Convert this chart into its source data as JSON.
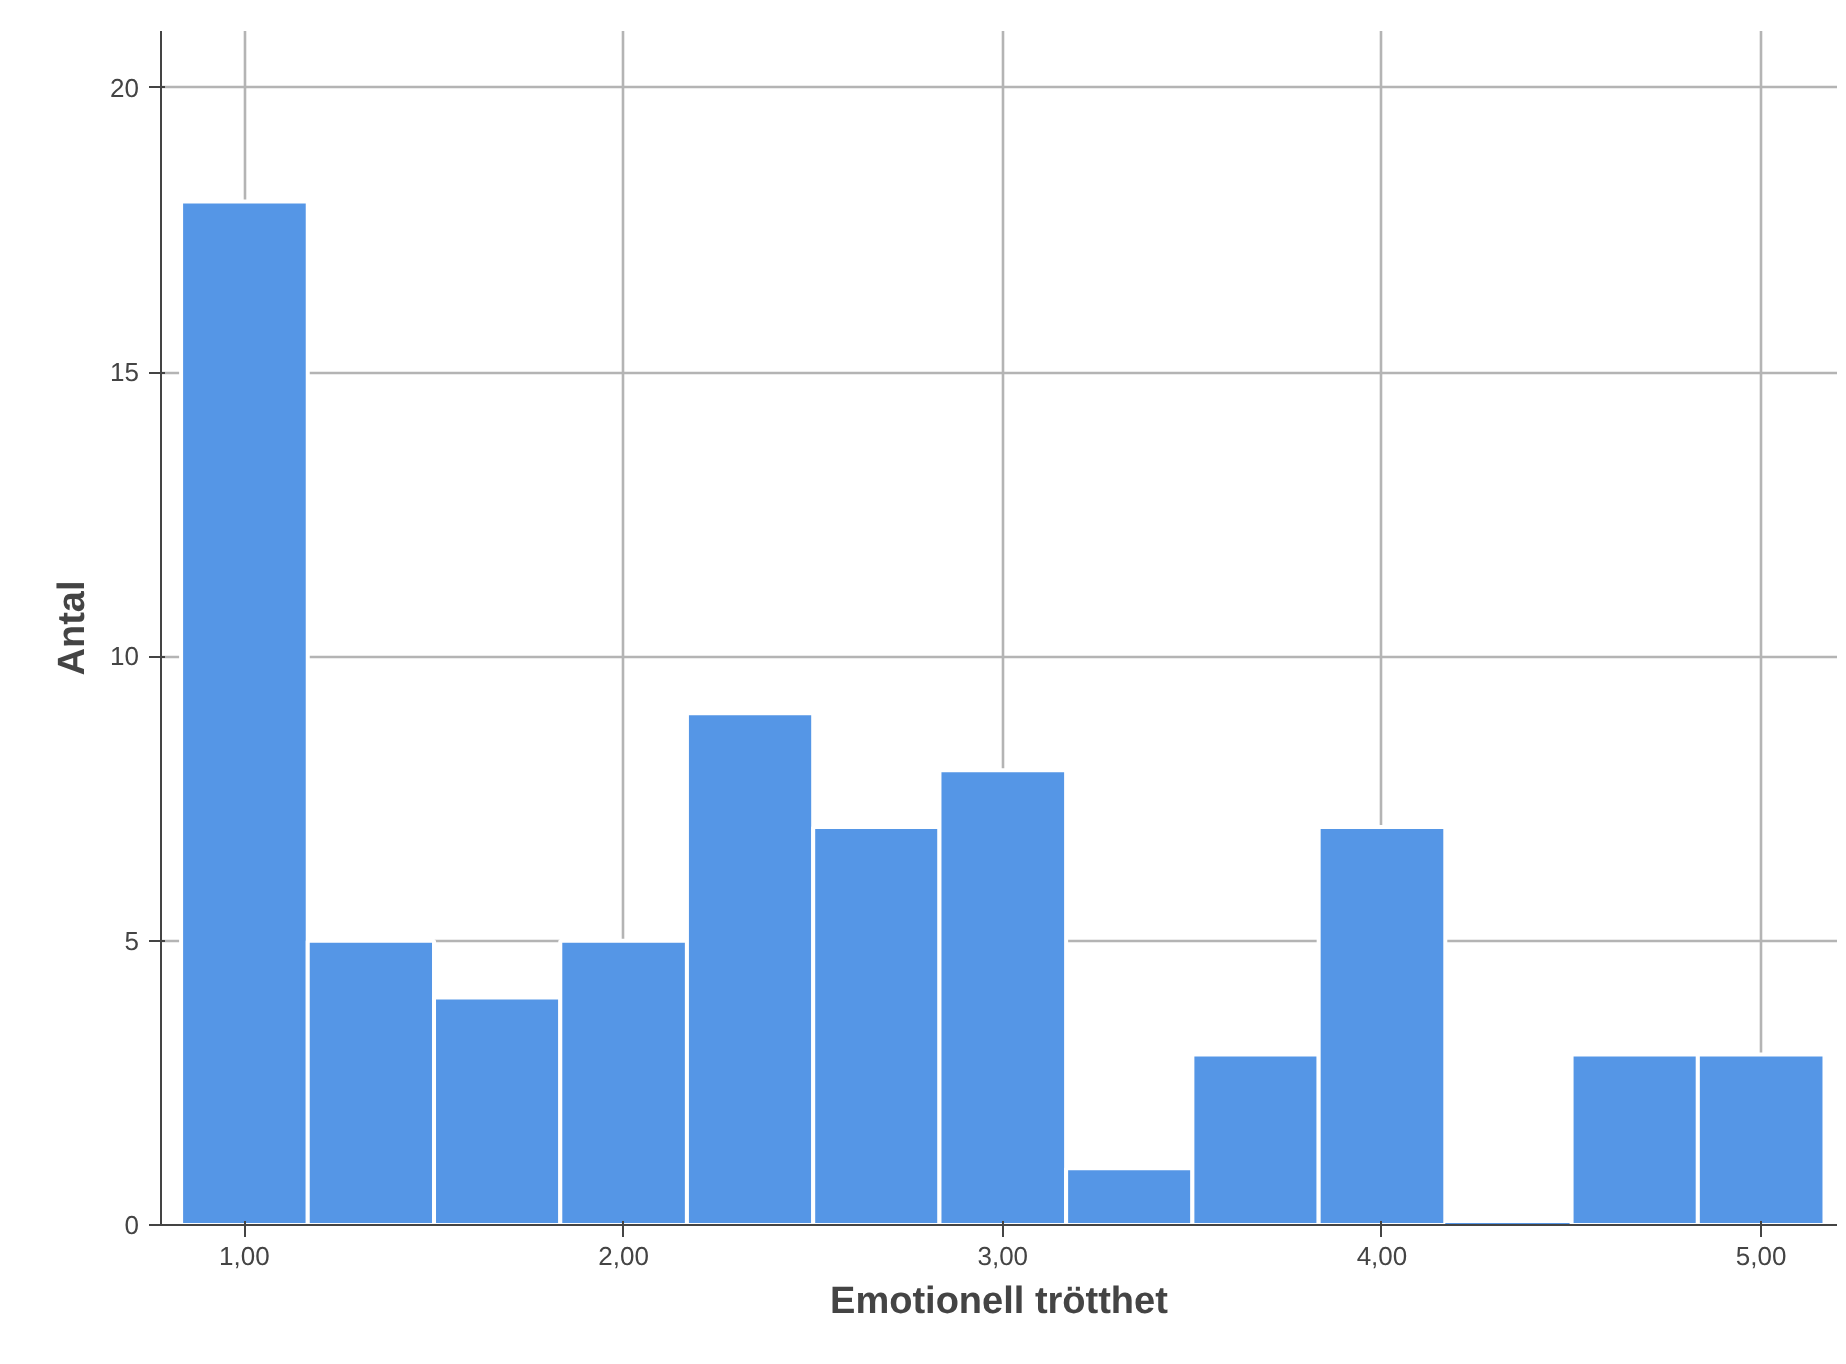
{
  "chart_data": {
    "type": "histogram",
    "xlabel": "Emotionell trötthet",
    "ylabel": "Antal",
    "bins": [
      0.833,
      1.167,
      1.5,
      1.833,
      2.167,
      2.5,
      2.833,
      3.167,
      3.5,
      3.833,
      4.167,
      4.5,
      4.833,
      5.167
    ],
    "values": [
      18,
      5,
      4,
      5,
      9,
      7,
      8,
      1,
      3,
      7,
      0,
      3,
      3
    ],
    "color": "#5596e6",
    "xlim": [
      0.78,
      5.2
    ],
    "ylim": [
      0,
      21
    ],
    "xticks": [
      {
        "value": 1,
        "label": "1,00"
      },
      {
        "value": 2,
        "label": "2,00"
      },
      {
        "value": 3,
        "label": "3,00"
      },
      {
        "value": 4,
        "label": "4,00"
      },
      {
        "value": 5,
        "label": "5,00"
      }
    ],
    "yticks": [
      0,
      5,
      10,
      15,
      20
    ],
    "grid": true
  }
}
